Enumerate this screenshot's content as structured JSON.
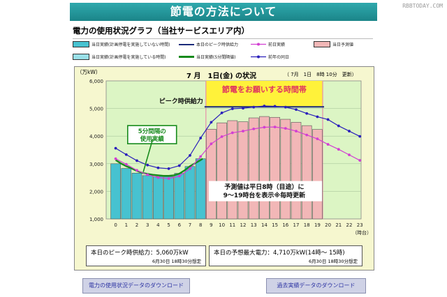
{
  "banner": {
    "title": "節電の方法について"
  },
  "watermark": "RBBTODAY.COM",
  "subtitle": "電力の使用状況グラフ（当社サービスエリア内）",
  "legend": {
    "items": [
      {
        "label": "当日実績(計画停電を実施していない時間)",
        "color": "#47c2d0",
        "kind": "box"
      },
      {
        "label": "本日のピーク時供給力",
        "color": "#1a2a7a",
        "kind": "line"
      },
      {
        "label": "前日実績",
        "color": "#d23fd2",
        "kind": "marker"
      },
      {
        "label": "当日予測値",
        "color": "#f2b7b7",
        "kind": "box"
      },
      {
        "label": "当日実績(計画停電を実施している時間)",
        "color": "#9ae0e8",
        "kind": "box"
      },
      {
        "label": "当日実績(5分間隔値)",
        "color": "#178a1c",
        "kind": "line"
      },
      {
        "label": "前年の同日",
        "color": "#2a1fbb",
        "kind": "marker"
      }
    ]
  },
  "panel": {
    "unit": "（万kW）",
    "status": "7 月　1日(金) の状況",
    "stamp": "（ 7月　1日　8時 10分　更新）"
  },
  "annotations": {
    "request_band": "節電をお願いする時間帯",
    "peak_label": "ピーク時供給力",
    "five_min": [
      "5分間隔の",
      "使用実績"
    ],
    "forecast_note": [
      "予測値は平日8時（目途）に",
      "9～19時台を表示※毎時更新"
    ]
  },
  "info": {
    "peak_supply": {
      "text": "本日のピーク時供給力：5,060万kW",
      "note": "6月30日 18時30分想定"
    },
    "forecast_max": {
      "text": "本日の予想最大電力：4,710万kW(14時～ 15時)",
      "note": "6月30日 18時30分想定"
    }
  },
  "buttons": {
    "download_usage": "電力の使用状況データのダウンロード",
    "download_past": "過去実績データのダウンロード"
  },
  "chart_data": {
    "type": "bar",
    "title": "7 月　1日(金) の状況",
    "ylabel": "（万kW）",
    "xlabel": "（時台）",
    "ylim": [
      1000,
      6000
    ],
    "y_ticks": [
      "1,000",
      "2,000",
      "3,000",
      "4,000",
      "5,000",
      "6,000"
    ],
    "y_tick_values": [
      1000,
      2000,
      3000,
      4000,
      5000,
      6000
    ],
    "categories": [
      "0",
      "1",
      "2",
      "3",
      "4",
      "5",
      "6",
      "7",
      "8",
      "9",
      "10",
      "11",
      "12",
      "13",
      "14",
      "15",
      "16",
      "17",
      "18",
      "19",
      "20",
      "21",
      "22",
      "23"
    ],
    "peak_supply": 5060,
    "request_band_hours": [
      9,
      20
    ],
    "series": [
      {
        "name": "当日実績(計画停電を実施していない時間)",
        "kind": "bar",
        "color": "#47c2d0",
        "values": [
          3000,
          2830,
          2660,
          2570,
          2540,
          2530,
          2650,
          2900,
          3180,
          null,
          null,
          null,
          null,
          null,
          null,
          null,
          null,
          null,
          null,
          null,
          null,
          null,
          null,
          null
        ]
      },
      {
        "name": "当日予測値",
        "kind": "bar",
        "color": "#f2b7b7",
        "values": [
          null,
          null,
          null,
          null,
          null,
          null,
          null,
          null,
          null,
          4250,
          4480,
          4560,
          4520,
          4660,
          4710,
          4680,
          4610,
          4500,
          4380,
          4240,
          null,
          null,
          null,
          null
        ]
      },
      {
        "name": "当日実績(5分間隔値)",
        "kind": "line",
        "color": "#178a1c",
        "x": [
          0.0,
          0.5,
          1.0,
          1.5,
          2.0,
          2.5,
          3.0,
          3.5,
          4.0,
          4.5,
          5.0,
          5.5,
          6.0,
          6.5,
          7.0,
          7.5,
          8.0,
          8.2
        ],
        "values": [
          3130,
          3010,
          2910,
          2830,
          2740,
          2670,
          2630,
          2600,
          2580,
          2560,
          2560,
          2580,
          2640,
          2760,
          2910,
          3020,
          3130,
          3180
        ]
      },
      {
        "name": "前日実績",
        "kind": "line",
        "color": "#d23fd2",
        "values": [
          3180,
          2980,
          2760,
          2600,
          2500,
          2460,
          2550,
          2820,
          3260,
          3720,
          3980,
          4120,
          4180,
          4260,
          4320,
          4330,
          4280,
          4180,
          4040,
          3900,
          3700,
          3520,
          3320,
          3120
        ]
      },
      {
        "name": "前年の同日",
        "kind": "line",
        "color": "#2a1fbb",
        "values": [
          3560,
          3330,
          3110,
          2950,
          2850,
          2820,
          2930,
          3300,
          3930,
          4500,
          4840,
          4990,
          5010,
          5050,
          5090,
          5080,
          5050,
          4960,
          4820,
          4700,
          4600,
          4370,
          4180,
          3990
        ]
      }
    ]
  }
}
